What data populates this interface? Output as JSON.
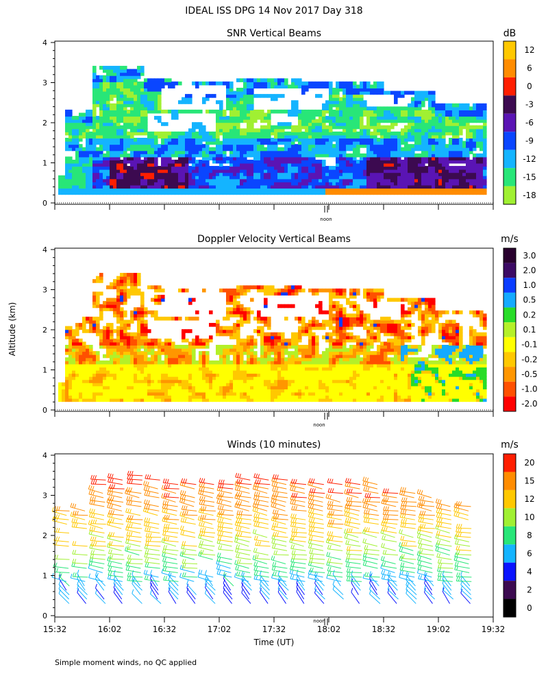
{
  "page": {
    "title": "IDEAL ISS DPG  14 Nov 2017 Day 318",
    "ylabel": "Altitude (km)",
    "xlabel": "Time (UT)",
    "footnote": "Simple moment winds, no QC applied",
    "noon_label": "noon"
  },
  "chart_data": [
    {
      "type": "heatmap",
      "title": "SNR Vertical Beams",
      "ylim": [
        0,
        4
      ],
      "y_ticks": [
        "0",
        "1",
        "2",
        "3",
        "4"
      ],
      "xlim_hours": [
        15.533,
        19.533
      ],
      "colorbar": {
        "unit": "dB",
        "labels": [
          "12",
          "6",
          "0",
          "-3",
          "-6",
          "-9",
          "-12",
          "-15",
          "-18"
        ],
        "colors": [
          "#ffc800",
          "#ff8c00",
          "#ff1e00",
          "#3c0a50",
          "#5a14b4",
          "#0a46ff",
          "#14b4ff",
          "#28e678",
          "#a0f032"
        ]
      }
    },
    {
      "type": "heatmap",
      "title": "Doppler Velocity Vertical Beams",
      "ylim": [
        0,
        4
      ],
      "y_ticks": [
        "0",
        "1",
        "2",
        "3",
        "4"
      ],
      "xlim_hours": [
        15.533,
        19.533
      ],
      "colorbar": {
        "unit": "m/s",
        "labels": [
          "3.0",
          "2.0",
          "1.0",
          "0.5",
          "0.2",
          "0.1",
          "-0.1",
          "-0.2",
          "-0.5",
          "-1.0",
          "-2.0"
        ],
        "colors": [
          "#28002d",
          "#3c0a64",
          "#0a3cff",
          "#14aaff",
          "#28dc28",
          "#b4f028",
          "#ffff00",
          "#ffc800",
          "#ff9600",
          "#ff5000",
          "#ff0000"
        ]
      }
    },
    {
      "type": "barbs",
      "title": "Winds (10 minutes)",
      "ylim": [
        0,
        4
      ],
      "y_ticks": [
        "0",
        "1",
        "2",
        "3",
        "4"
      ],
      "xlim_hours": [
        15.533,
        19.533
      ],
      "x_ticks": [
        "15:32",
        "16:02",
        "16:32",
        "17:02",
        "17:32",
        "18:02",
        "18:32",
        "19:02",
        "19:32"
      ],
      "colorbar": {
        "unit": "m/s",
        "labels": [
          "20",
          "15",
          "12",
          "10",
          "8",
          "6",
          "4",
          "2",
          "0"
        ],
        "colors": [
          "#ff1e00",
          "#ff8c00",
          "#ffc800",
          "#a0f032",
          "#28e678",
          "#14b4ff",
          "#0a14ff",
          "#3c0a50",
          "#000000"
        ]
      }
    }
  ]
}
